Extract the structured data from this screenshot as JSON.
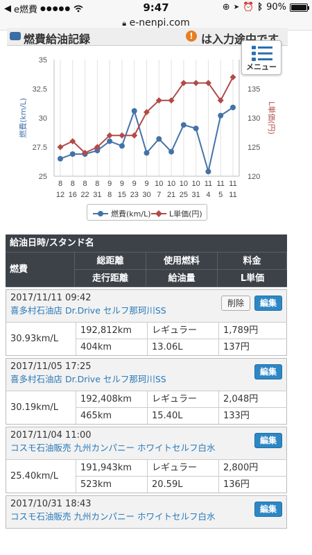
{
  "status_bar": {
    "app_back": "e燃費",
    "signal": "●●●●●",
    "time": "9:47",
    "battery": "90%",
    "battery_level": 0.9
  },
  "url_bar": {
    "domain": "e-nenpi.com"
  },
  "header": {
    "title": "燃費給油記録",
    "warning_icon": "!",
    "warning_text": "は入力途中です"
  },
  "menu": {
    "label": "メニュー"
  },
  "chart_data": {
    "type": "line",
    "categories": [
      [
        "8",
        "12"
      ],
      [
        "8",
        "16"
      ],
      [
        "8",
        "22"
      ],
      [
        "8",
        "31"
      ],
      [
        "9",
        "8"
      ],
      [
        "9",
        "15"
      ],
      [
        "9",
        "23"
      ],
      [
        "9",
        "30"
      ],
      [
        "10",
        "7"
      ],
      [
        "10",
        "21"
      ],
      [
        "10",
        "25"
      ],
      [
        "10",
        "31"
      ],
      [
        "11",
        "4"
      ],
      [
        "11",
        "5"
      ],
      [
        "11",
        "11"
      ]
    ],
    "series": [
      {
        "name": "燃費(km/L)",
        "axis": "left",
        "color": "#4472a8",
        "marker": "circle",
        "values": [
          26.5,
          26.9,
          26.9,
          27.2,
          28.0,
          27.6,
          30.6,
          27.0,
          28.2,
          27.1,
          29.4,
          29.1,
          25.4,
          30.2,
          30.9
        ]
      },
      {
        "name": "L単価(円)",
        "axis": "right",
        "color": "#b24a48",
        "marker": "diamond",
        "values": [
          125,
          126,
          124,
          125,
          127,
          127,
          127,
          131,
          133,
          133,
          136,
          136,
          136,
          133,
          137
        ]
      }
    ],
    "left_axis": {
      "label": "燃費(km/L)",
      "min": 25,
      "max": 35,
      "ticks": [
        "25",
        "27.5",
        "30",
        "32.5",
        "35"
      ]
    },
    "right_axis": {
      "label": "L単価(円)",
      "min": 120,
      "max": 140,
      "ticks": [
        "120",
        "125",
        "130",
        "135"
      ]
    },
    "grid": "vertical",
    "legend": "bottom-center"
  },
  "table": {
    "header_title": "給油日時/スタンド名",
    "col_fuel_eff": "燃費",
    "col_total_dist": "総距離",
    "col_trip_dist": "走行距離",
    "col_fuel_type": "使用燃料",
    "col_fuel_amount": "給油量",
    "col_cost": "料金",
    "col_unit_price": "L単価"
  },
  "records": [
    {
      "datetime": "2017/11/11 09:42",
      "station": "喜多村石油店 Dr.Drive セルフ那珂川SS",
      "delete_label": "削除",
      "edit_label": "編集",
      "efficiency": "30.93km/L",
      "total_distance": "192,812km",
      "trip_distance": "404km",
      "fuel_type": "レギュラー",
      "fuel_amount": "13.06L",
      "cost": "1,789円",
      "unit_price": "137円"
    },
    {
      "datetime": "2017/11/05 17:25",
      "station": "喜多村石油店 Dr.Drive セルフ那珂川SS",
      "edit_label": "編集",
      "efficiency": "30.19km/L",
      "total_distance": "192,408km",
      "trip_distance": "465km",
      "fuel_type": "レギュラー",
      "fuel_amount": "15.40L",
      "cost": "2,048円",
      "unit_price": "133円"
    },
    {
      "datetime": "2017/11/04 11:00",
      "station": "コスモ石油販売 九州カンパニー ホワイトセルフ白水",
      "edit_label": "編集",
      "efficiency": "25.40km/L",
      "total_distance": "191,943km",
      "trip_distance": "523km",
      "fuel_type": "レギュラー",
      "fuel_amount": "20.59L",
      "cost": "2,800円",
      "unit_price": "136円"
    },
    {
      "datetime": "2017/10/31 18:43",
      "station": "コスモ石油販売 九州カンパニー ホワイトセルフ白水",
      "edit_label": "編集"
    }
  ]
}
